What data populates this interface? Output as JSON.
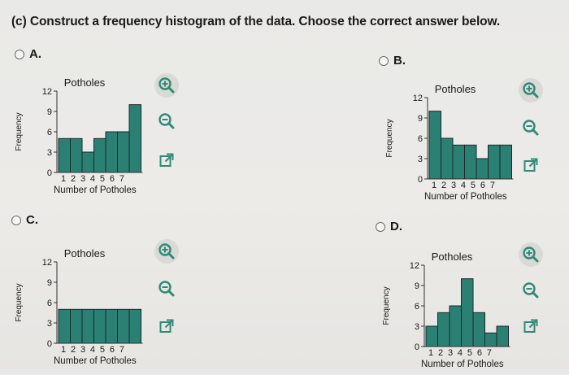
{
  "question": "(c) Construct a frequency histogram of the data. Choose the correct answer below.",
  "colors": {
    "bar": "#2a8073",
    "bar_stroke": "#1a2a28",
    "icon": "#2f8a78",
    "radio": "#6b6b6b"
  },
  "options": [
    {
      "letter": "A.",
      "tools": [
        "zoom-in-icon",
        "zoom-out-icon",
        "open-external-icon"
      ],
      "chart_data": {
        "type": "bar",
        "title": "Potholes",
        "xlabel": "Number of Potholes",
        "ylabel": "Frequency",
        "categories": [
          "1",
          "2",
          "3",
          "4",
          "5",
          "6",
          "7"
        ],
        "values": [
          5,
          5,
          3,
          5,
          6,
          6,
          10
        ],
        "ylim": [
          0,
          12
        ],
        "yticks": [
          "0",
          "3",
          "6",
          "9",
          "12"
        ],
        "xtick_text": "1 2 3 4 5 6 7"
      }
    },
    {
      "letter": "B.",
      "tools": [
        "zoom-in-icon",
        "zoom-out-icon",
        "open-external-icon"
      ],
      "chart_data": {
        "type": "bar",
        "title": "Potholes",
        "xlabel": "Number of Potholes",
        "ylabel": "Frequency",
        "categories": [
          "1",
          "2",
          "3",
          "4",
          "5",
          "6",
          "7"
        ],
        "values": [
          10,
          6,
          5,
          5,
          3,
          5,
          5
        ],
        "ylim": [
          0,
          12
        ],
        "yticks": [
          "0",
          "3",
          "6",
          "9",
          "12"
        ],
        "xtick_text": "1 2 3 4 5 6 7"
      }
    },
    {
      "letter": "C.",
      "tools": [
        "zoom-in-icon",
        "zoom-out-icon",
        "open-external-icon"
      ],
      "chart_data": {
        "type": "bar",
        "title": "Potholes",
        "xlabel": "Number of Potholes",
        "ylabel": "Frequency",
        "categories": [
          "1",
          "2",
          "3",
          "4",
          "5",
          "6",
          "7"
        ],
        "values": [
          5,
          5,
          5,
          5,
          5,
          5,
          5
        ],
        "ylim": [
          0,
          12
        ],
        "yticks": [
          "0",
          "3",
          "6",
          "9",
          "12"
        ],
        "xtick_text": "1 2 3 4 5 6 7"
      }
    },
    {
      "letter": "D.",
      "tools": [
        "zoom-in-icon",
        "zoom-out-icon",
        "open-external-icon"
      ],
      "chart_data": {
        "type": "bar",
        "title": "Potholes",
        "xlabel": "Number of Potholes",
        "ylabel": "Frequency",
        "categories": [
          "1",
          "2",
          "3",
          "4",
          "5",
          "6",
          "7"
        ],
        "values": [
          3,
          5,
          6,
          10,
          5,
          2,
          3
        ],
        "ylim": [
          0,
          12
        ],
        "yticks": [
          "0",
          "3",
          "6",
          "9",
          "12"
        ],
        "xtick_text": "1 2 3 4 5 6 7"
      }
    }
  ]
}
